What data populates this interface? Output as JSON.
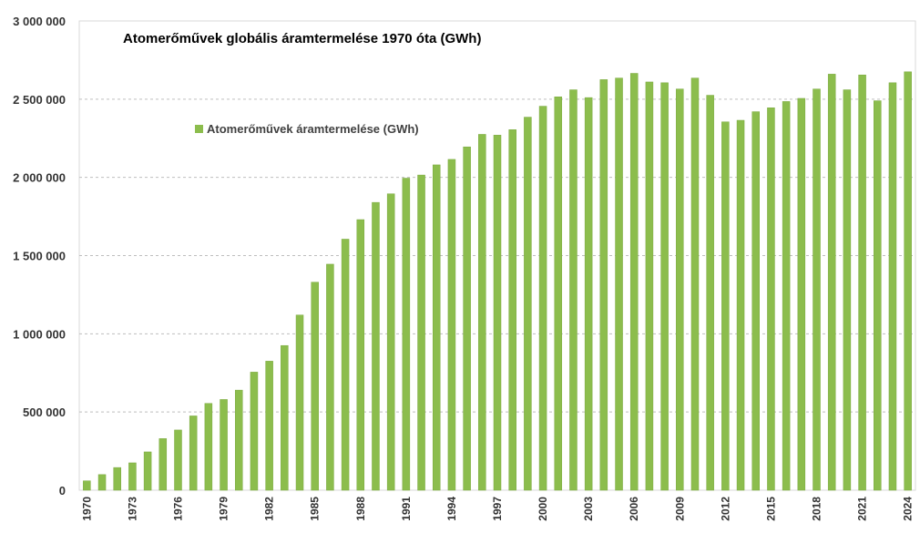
{
  "chart_data": {
    "type": "bar",
    "title": "Atomerőművek globális áramtermelése 1970 óta (GWh)",
    "xlabel": "",
    "ylabel": "",
    "ylim": [
      0,
      3000000
    ],
    "yticks": [
      0,
      500000,
      1000000,
      1500000,
      2000000,
      2500000,
      3000000
    ],
    "ytick_labels": [
      "0",
      "500 000",
      "1 000 000",
      "1 500 000",
      "2 000 000",
      "2 500 000",
      "3 000 000"
    ],
    "grid": true,
    "legend_position": "upper-left inside",
    "xtick_labels": [
      "1970",
      "1973",
      "1976",
      "1979",
      "1982",
      "1985",
      "1988",
      "1991",
      "1994",
      "1997",
      "2000",
      "2003",
      "2006",
      "2009",
      "2012",
      "2015",
      "2018",
      "2021",
      "2024"
    ],
    "categories": [
      "1970",
      "1971",
      "1972",
      "1973",
      "1974",
      "1975",
      "1976",
      "1977",
      "1978",
      "1979",
      "1980",
      "1981",
      "1982",
      "1983",
      "1984",
      "1985",
      "1986",
      "1987",
      "1988",
      "1989",
      "1990",
      "1991",
      "1992",
      "1993",
      "1994",
      "1995",
      "1996",
      "1997",
      "1998",
      "1999",
      "2000",
      "2001",
      "2002",
      "2003",
      "2004",
      "2005",
      "2006",
      "2007",
      "2008",
      "2009",
      "2010",
      "2011",
      "2012",
      "2013",
      "2014",
      "2015",
      "2016",
      "2017",
      "2018",
      "2019",
      "2020",
      "2021",
      "2022",
      "2023",
      "2024"
    ],
    "series": [
      {
        "name": "Atomerőművek áramtermelése (GWh)",
        "color": "#8cbd4d",
        "values": [
          60000,
          100000,
          145000,
          175000,
          245000,
          330000,
          385000,
          475000,
          555000,
          580000,
          640000,
          755000,
          825000,
          925000,
          1120000,
          1330000,
          1445000,
          1605000,
          1730000,
          1840000,
          1895000,
          1995000,
          2015000,
          2080000,
          2115000,
          2195000,
          2275000,
          2270000,
          2305000,
          2385000,
          2455000,
          2515000,
          2560000,
          2510000,
          2625000,
          2635000,
          2665000,
          2610000,
          2605000,
          2565000,
          2635000,
          2525000,
          2355000,
          2365000,
          2420000,
          2445000,
          2485000,
          2505000,
          2565000,
          2660000,
          2560000,
          2655000,
          2490000,
          2605000,
          2675000
        ]
      }
    ]
  }
}
